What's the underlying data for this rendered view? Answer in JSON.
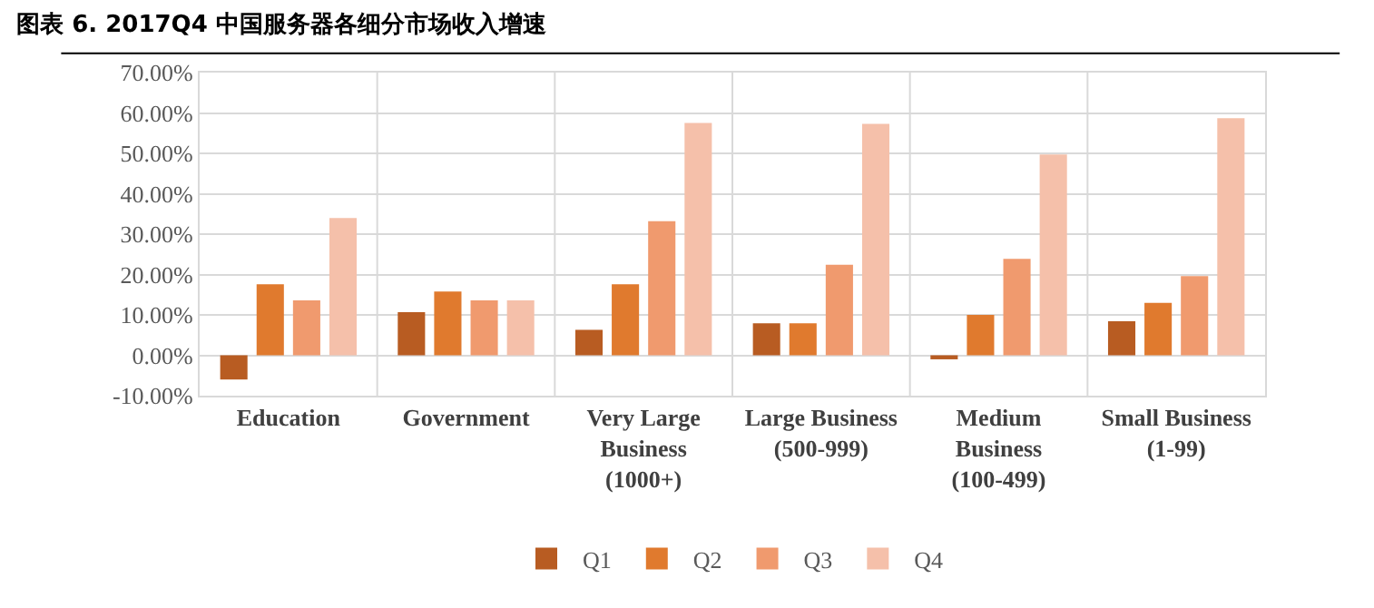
{
  "chart_data": {
    "type": "bar",
    "title": "图表 6. 2017Q4 中国服务器各细分市场收入增速",
    "categories": [
      "Education",
      "Government",
      "Very Large Business (1000+)",
      "Large Business (500-999)",
      "Medium Business (100-499)",
      "Small Business (1-99)"
    ],
    "series": [
      {
        "name": "Q1",
        "color": "#b85c22",
        "values": [
          -6,
          10.7,
          6.3,
          7.9,
          -1,
          8.4
        ]
      },
      {
        "name": "Q2",
        "color": "#e07a2e",
        "values": [
          17.6,
          15.8,
          17.6,
          7.9,
          10,
          13
        ]
      },
      {
        "name": "Q3",
        "color": "#f09a6e",
        "values": [
          13.6,
          13.6,
          33.2,
          22.4,
          23.9,
          19.6
        ]
      },
      {
        "name": "Q4",
        "color": "#f5c0aa",
        "values": [
          34,
          13.6,
          57.5,
          57.3,
          49.7,
          58.7
        ]
      }
    ],
    "ylim": [
      -10,
      70
    ],
    "yticks": [
      {
        "value": -10,
        "label": "-10.00%"
      },
      {
        "value": 0,
        "label": "0.00%"
      },
      {
        "value": 10,
        "label": "10.00%"
      },
      {
        "value": 20,
        "label": "20.00%"
      },
      {
        "value": 30,
        "label": "30.00%"
      },
      {
        "value": 40,
        "label": "40.00%"
      },
      {
        "value": 50,
        "label": "50.00%"
      },
      {
        "value": 60,
        "label": "60.00%"
      },
      {
        "value": 70,
        "label": "70.00%"
      }
    ],
    "grid": true,
    "legend": "bottom"
  }
}
